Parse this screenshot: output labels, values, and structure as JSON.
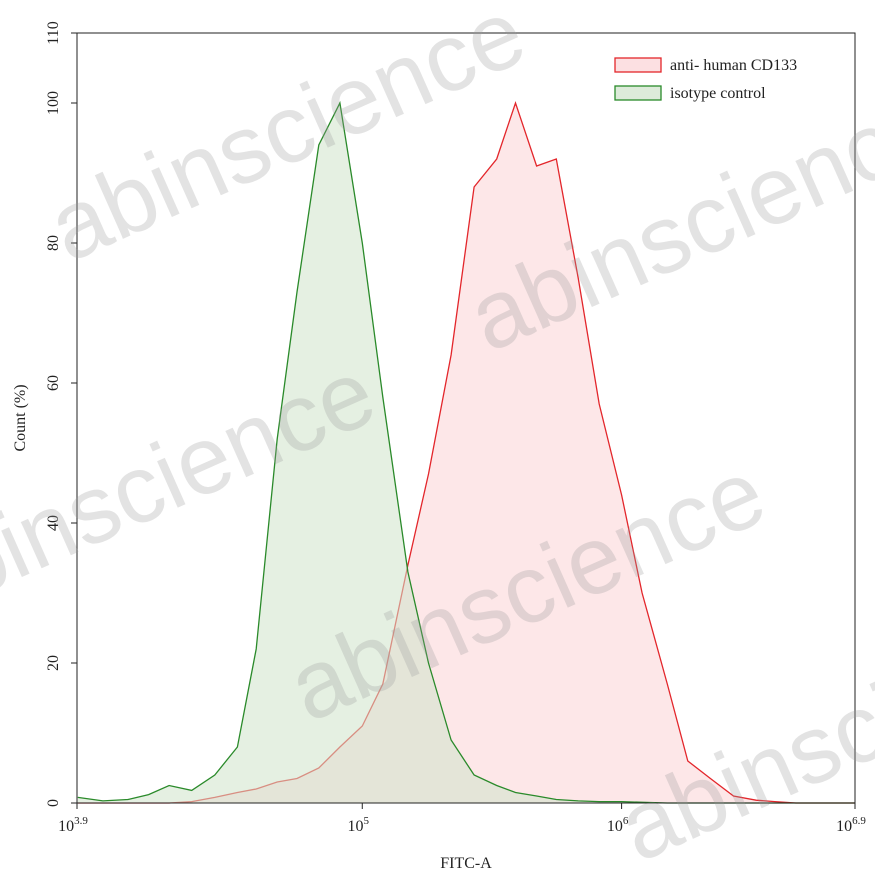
{
  "chart_data": {
    "type": "line",
    "xlabel": "FITC-A",
    "ylabel": "Count  (%)",
    "watermark": "abinscience",
    "xscale": "log",
    "xlim": [
      7943.28,
      7943282.35
    ],
    "xticks": [
      {
        "value": 7943.28,
        "label": "10",
        "exponent": "3.9"
      },
      {
        "value": 100000,
        "label": "10",
        "exponent": "5"
      },
      {
        "value": 1000000,
        "label": "10",
        "exponent": "6"
      },
      {
        "value": 7943282.35,
        "label": "10",
        "exponent": "6.9"
      }
    ],
    "ylim": [
      0,
      110
    ],
    "yticks": [
      0,
      20,
      40,
      60,
      80,
      100,
      110
    ],
    "grid": false,
    "legend": "upper right",
    "x": [
      8000,
      10000,
      12500,
      15000,
      18000,
      22000,
      27000,
      33000,
      39000,
      47000,
      56000,
      68000,
      82000,
      100000,
      120000,
      150000,
      180000,
      220000,
      270000,
      330000,
      390000,
      470000,
      560000,
      680000,
      820000,
      1000000,
      1200000,
      1500000,
      1800000,
      2200000,
      2700000,
      3300000,
      3900000,
      4700000,
      5600000,
      6800000,
      7900000
    ],
    "series": [
      {
        "name": "anti- human CD133",
        "color": "#e3262b",
        "fill": "#fbd3d6",
        "values": [
          0,
          0,
          0,
          0,
          0,
          0.2,
          0.8,
          1.5,
          2,
          3,
          3.5,
          5,
          8,
          11,
          17,
          34,
          47,
          64,
          88,
          92,
          100,
          91,
          92,
          75,
          57,
          44,
          30,
          17,
          6,
          3.5,
          1,
          0.4,
          0.2,
          0,
          0,
          0,
          0
        ]
      },
      {
        "name": "isotype control",
        "color": "#2a8a2a",
        "fill": "#cfe3ca",
        "values": [
          0.8,
          0.3,
          0.5,
          1.2,
          2.5,
          1.8,
          4,
          8,
          22,
          52,
          73,
          94,
          100,
          80,
          58,
          33,
          20,
          9,
          4,
          2.5,
          1.5,
          1,
          0.5,
          0.3,
          0.2,
          0.2,
          0.1,
          0,
          0,
          0,
          0,
          0,
          0,
          0,
          0,
          0,
          0
        ]
      }
    ]
  }
}
